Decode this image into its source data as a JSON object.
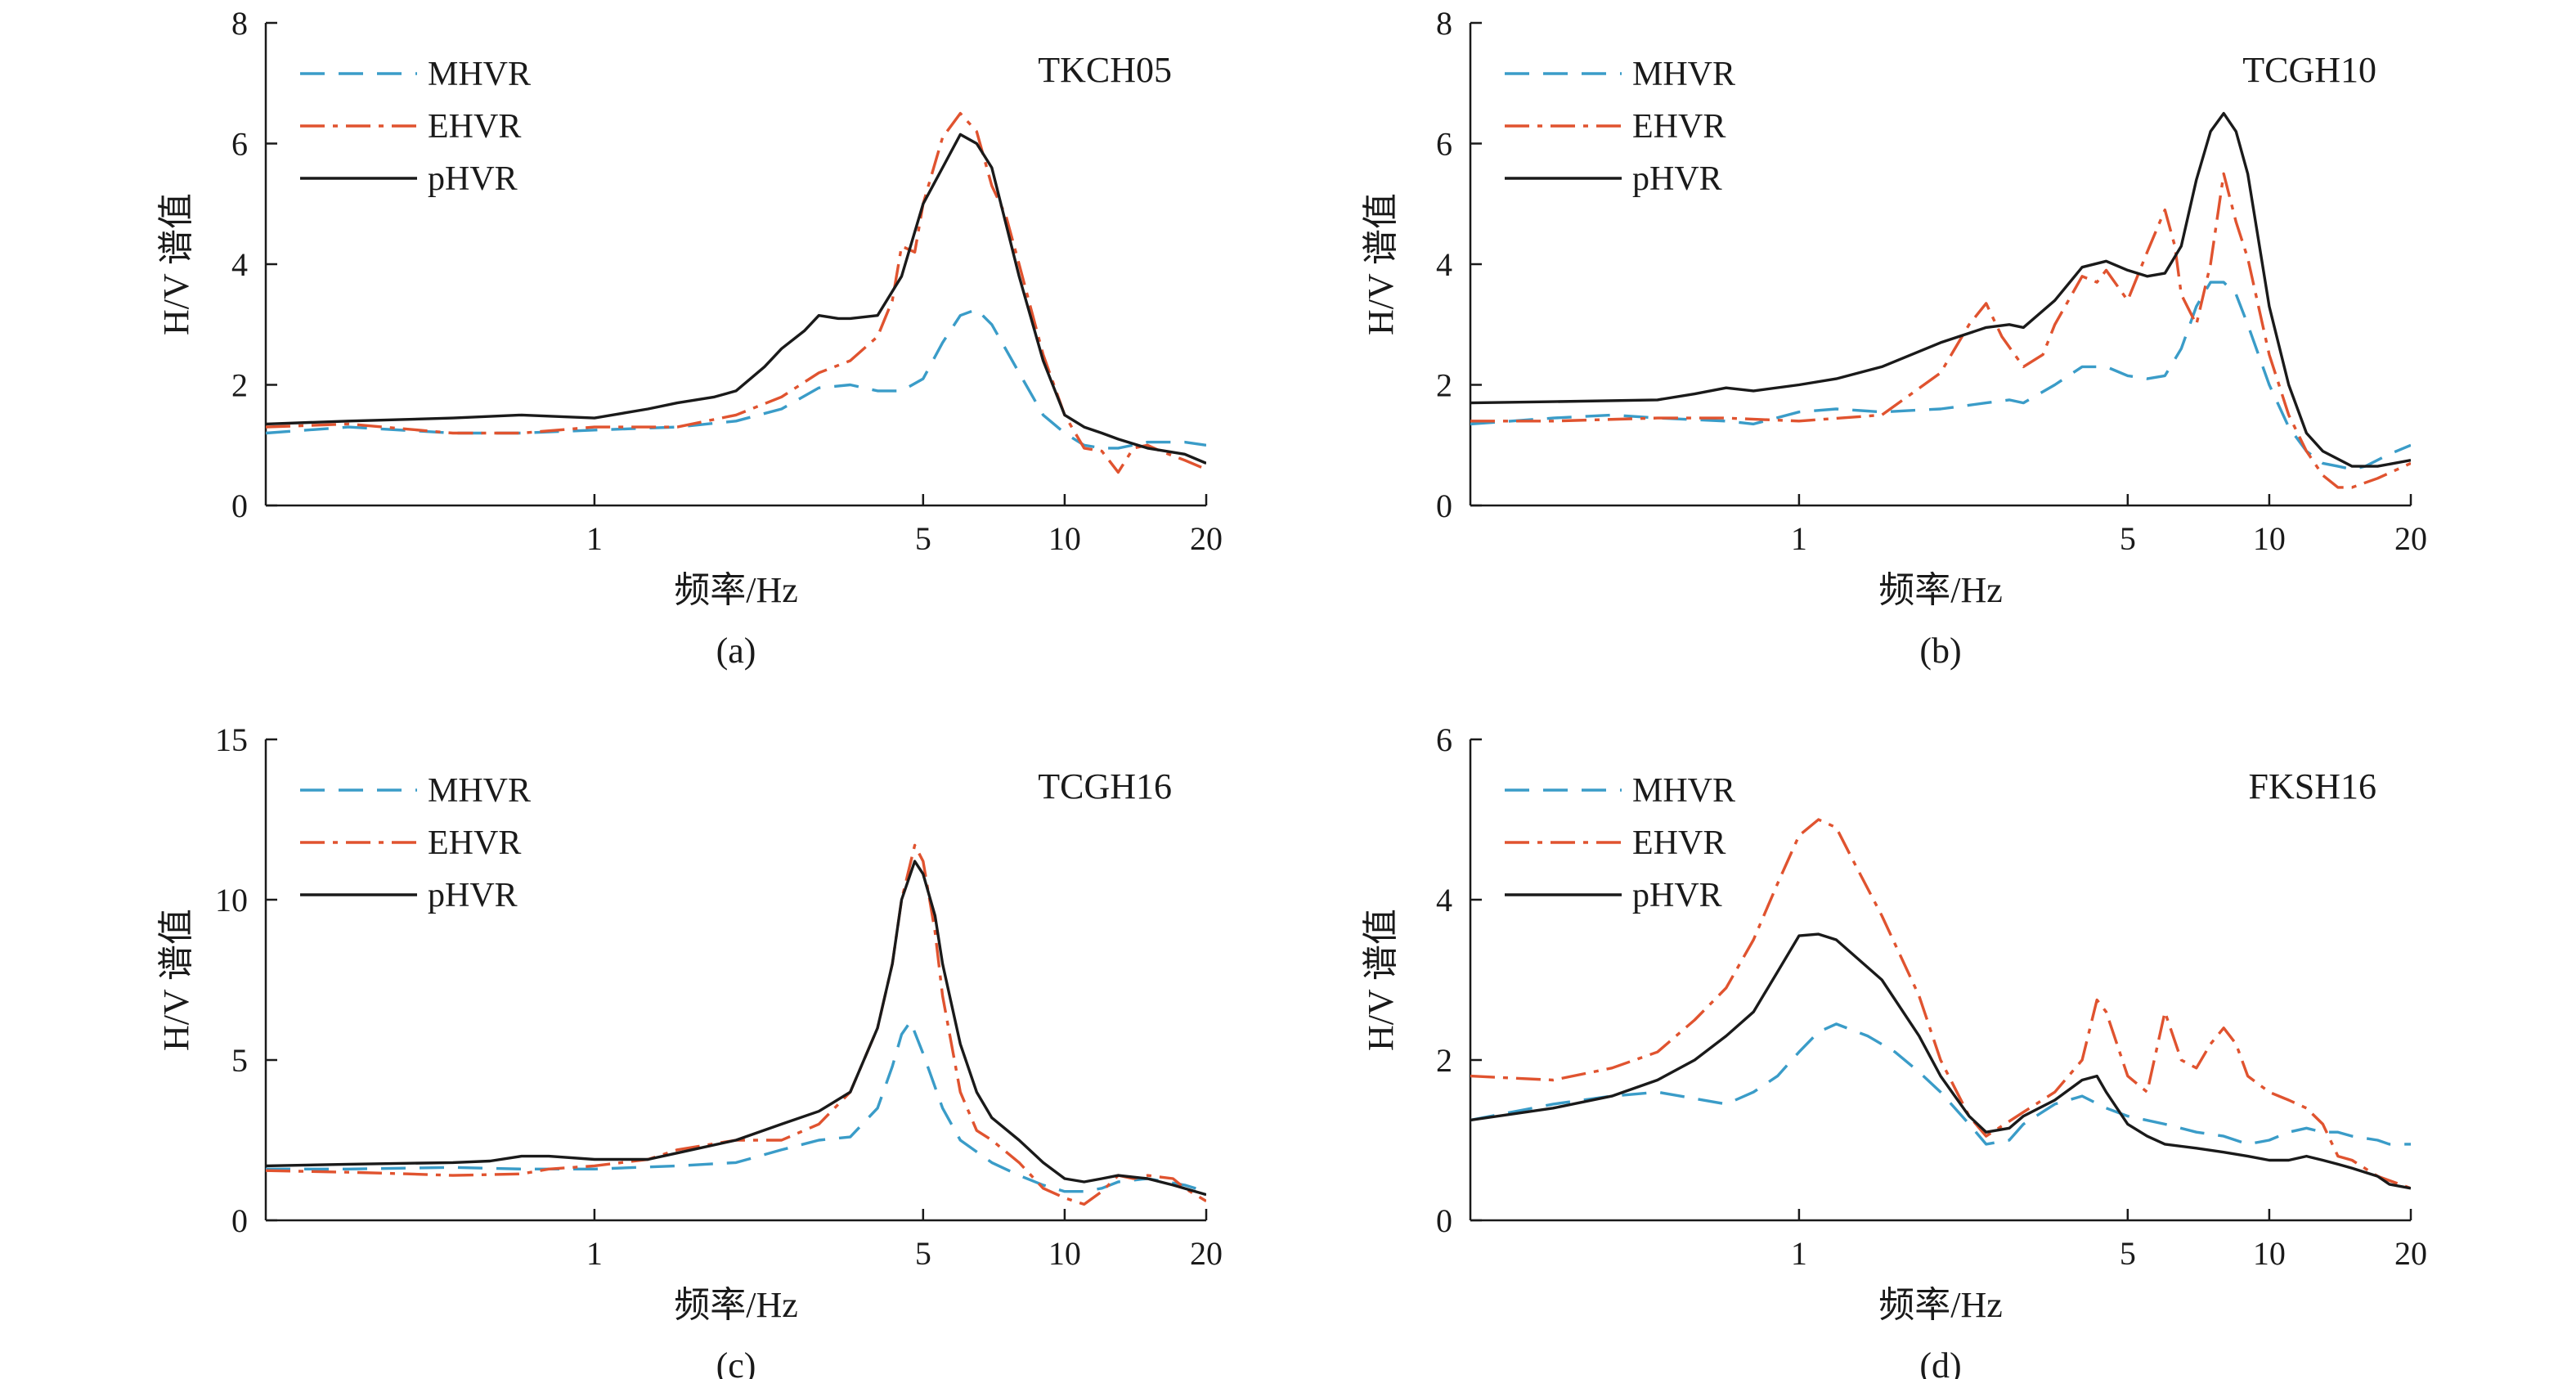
{
  "colors": {
    "MHVR": "#3a9cc8",
    "EHVR": "#e0532f",
    "pHVR": "#1a1a1a"
  },
  "chart_data": [
    {
      "panel_label": "(a)",
      "type": "line",
      "station": "TKCH05",
      "xlabel": "频率/Hz",
      "ylabel": "H/V 谱值",
      "xscale": "log",
      "xlim": [
        0.2,
        20
      ],
      "ylim": [
        0,
        8
      ],
      "xticks": [
        {
          "v": 1,
          "label": "1"
        },
        {
          "v": 5,
          "label": "5"
        },
        {
          "v": 10,
          "label": "10"
        },
        {
          "v": 20,
          "label": "20"
        }
      ],
      "yticks": [
        0,
        2,
        4,
        6,
        8
      ],
      "legend": [
        "MHVR",
        "EHVR",
        "pHVR"
      ],
      "legend_position": "top-left",
      "series": [
        {
          "name": "MHVR",
          "dash": "long",
          "x": [
            0.2,
            0.3,
            0.5,
            0.7,
            1.0,
            1.5,
            2.0,
            2.5,
            3.0,
            3.5,
            4.0,
            4.5,
            5.0,
            5.5,
            6.0,
            6.5,
            7.0,
            8.0,
            9.0,
            10,
            11,
            12,
            13,
            15,
            18,
            20
          ],
          "y": [
            1.2,
            1.3,
            1.2,
            1.2,
            1.25,
            1.3,
            1.4,
            1.6,
            1.95,
            2.0,
            1.9,
            1.9,
            2.1,
            2.7,
            3.15,
            3.25,
            3.0,
            2.2,
            1.5,
            1.2,
            1.0,
            0.95,
            0.95,
            1.05,
            1.05,
            1.0
          ]
        },
        {
          "name": "EHVR",
          "dash": "dashdot",
          "x": [
            0.2,
            0.3,
            0.5,
            0.7,
            1.0,
            1.5,
            2.0,
            2.5,
            3.0,
            3.5,
            4.0,
            4.3,
            4.5,
            4.8,
            5.0,
            5.5,
            6.0,
            6.5,
            7.0,
            7.5,
            8.0,
            9.0,
            10,
            11,
            12,
            13,
            14,
            15,
            16,
            18,
            20
          ],
          "y": [
            1.3,
            1.35,
            1.2,
            1.2,
            1.3,
            1.3,
            1.5,
            1.8,
            2.2,
            2.4,
            2.8,
            3.4,
            4.3,
            4.2,
            5.0,
            6.1,
            6.5,
            6.2,
            5.3,
            4.8,
            4.0,
            2.5,
            1.5,
            0.95,
            0.9,
            0.55,
            0.95,
            1.0,
            0.9,
            0.75,
            0.6
          ]
        },
        {
          "name": "pHVR",
          "dash": "solid",
          "x": [
            0.2,
            0.3,
            0.5,
            0.7,
            1.0,
            1.3,
            1.5,
            1.8,
            2.0,
            2.3,
            2.5,
            2.8,
            3.0,
            3.3,
            3.5,
            4.0,
            4.5,
            5.0,
            5.5,
            6.0,
            6.5,
            7.0,
            8.0,
            9.0,
            10,
            11,
            12,
            13,
            15,
            18,
            20
          ],
          "y": [
            1.35,
            1.4,
            1.45,
            1.5,
            1.45,
            1.6,
            1.7,
            1.8,
            1.9,
            2.3,
            2.6,
            2.9,
            3.15,
            3.1,
            3.1,
            3.15,
            3.8,
            5.0,
            5.6,
            6.15,
            6.0,
            5.6,
            3.8,
            2.4,
            1.5,
            1.3,
            1.2,
            1.1,
            0.95,
            0.85,
            0.7
          ]
        }
      ]
    },
    {
      "panel_label": "(b)",
      "type": "line",
      "station": "TCGH10",
      "xlabel": "频率/Hz",
      "ylabel": "H/V 谱值",
      "xscale": "log",
      "xlim": [
        0.2,
        20
      ],
      "ylim": [
        0,
        8
      ],
      "xticks": [
        {
          "v": 1,
          "label": "1"
        },
        {
          "v": 5,
          "label": "5"
        },
        {
          "v": 10,
          "label": "10"
        },
        {
          "v": 20,
          "label": "20"
        }
      ],
      "yticks": [
        0,
        2,
        4,
        6,
        8
      ],
      "legend": [
        "MHVR",
        "EHVR",
        "pHVR"
      ],
      "legend_position": "top-left",
      "series": [
        {
          "name": "MHVR",
          "dash": "long",
          "x": [
            0.2,
            0.3,
            0.4,
            0.5,
            0.7,
            0.8,
            1.0,
            1.2,
            1.5,
            2.0,
            2.5,
            2.8,
            3.0,
            3.5,
            4.0,
            4.5,
            5.0,
            5.5,
            6.0,
            6.5,
            7.0,
            7.5,
            8.0,
            8.5,
            9.0,
            10,
            11,
            12,
            13,
            14,
            15,
            16,
            18,
            20
          ],
          "y": [
            1.35,
            1.45,
            1.5,
            1.45,
            1.4,
            1.35,
            1.55,
            1.6,
            1.55,
            1.6,
            1.7,
            1.75,
            1.7,
            2.0,
            2.3,
            2.3,
            2.15,
            2.1,
            2.15,
            2.6,
            3.3,
            3.7,
            3.7,
            3.5,
            3.0,
            2.0,
            1.3,
            0.9,
            0.7,
            0.65,
            0.6,
            0.65,
            0.85,
            1.0
          ]
        },
        {
          "name": "EHVR",
          "dash": "dashdot",
          "x": [
            0.2,
            0.3,
            0.5,
            0.7,
            1.0,
            1.5,
            2.0,
            2.3,
            2.5,
            2.7,
            3.0,
            3.3,
            3.5,
            4.0,
            4.3,
            4.5,
            5.0,
            5.5,
            6.0,
            6.3,
            6.5,
            7.0,
            7.5,
            8.0,
            8.5,
            9.0,
            10,
            11,
            12,
            13,
            14,
            15,
            17,
            20
          ],
          "y": [
            1.4,
            1.4,
            1.45,
            1.45,
            1.4,
            1.5,
            2.2,
            3.0,
            3.35,
            2.8,
            2.3,
            2.5,
            3.0,
            3.8,
            3.7,
            3.9,
            3.4,
            4.2,
            4.9,
            4.3,
            3.5,
            3.0,
            4.0,
            5.5,
            4.7,
            4.1,
            2.5,
            1.5,
            0.9,
            0.5,
            0.3,
            0.3,
            0.45,
            0.7
          ]
        },
        {
          "name": "pHVR",
          "dash": "solid",
          "x": [
            0.2,
            0.3,
            0.5,
            0.6,
            0.7,
            0.8,
            1.0,
            1.2,
            1.5,
            2.0,
            2.5,
            2.8,
            3.0,
            3.5,
            4.0,
            4.5,
            5.0,
            5.5,
            6.0,
            6.5,
            7.0,
            7.5,
            8.0,
            8.5,
            9.0,
            10,
            11,
            12,
            13,
            15,
            17,
            20
          ],
          "y": [
            1.7,
            1.72,
            1.75,
            1.85,
            1.95,
            1.9,
            2.0,
            2.1,
            2.3,
            2.7,
            2.95,
            3.0,
            2.95,
            3.4,
            3.95,
            4.05,
            3.9,
            3.8,
            3.85,
            4.3,
            5.4,
            6.2,
            6.5,
            6.2,
            5.5,
            3.3,
            2.0,
            1.2,
            0.9,
            0.65,
            0.65,
            0.75
          ]
        }
      ]
    },
    {
      "panel_label": "(c)",
      "type": "line",
      "station": "TCGH16",
      "xlabel": "频率/Hz",
      "ylabel": "H/V 谱值",
      "xscale": "log",
      "xlim": [
        0.2,
        20
      ],
      "ylim": [
        0,
        15
      ],
      "xticks": [
        {
          "v": 1,
          "label": "1"
        },
        {
          "v": 5,
          "label": "5"
        },
        {
          "v": 10,
          "label": "10"
        },
        {
          "v": 20,
          "label": "20"
        }
      ],
      "yticks": [
        0,
        5,
        10,
        15
      ],
      "legend": [
        "MHVR",
        "EHVR",
        "pHVR"
      ],
      "legend_position": "top-left",
      "series": [
        {
          "name": "MHVR",
          "dash": "long",
          "x": [
            0.2,
            0.3,
            0.5,
            0.7,
            1.0,
            1.5,
            2.0,
            2.5,
            3.0,
            3.5,
            4.0,
            4.3,
            4.5,
            4.7,
            5.0,
            5.5,
            6.0,
            7.0,
            8.0,
            9.0,
            10,
            11,
            12,
            13,
            15,
            18,
            20
          ],
          "y": [
            1.6,
            1.6,
            1.65,
            1.6,
            1.6,
            1.7,
            1.8,
            2.2,
            2.5,
            2.6,
            3.5,
            4.8,
            5.8,
            6.2,
            5.2,
            3.5,
            2.5,
            1.8,
            1.4,
            1.1,
            0.9,
            0.9,
            1.0,
            1.2,
            1.3,
            1.1,
            0.9
          ]
        },
        {
          "name": "EHVR",
          "dash": "dashdot",
          "x": [
            0.2,
            0.3,
            0.4,
            0.5,
            0.7,
            0.8,
            1.0,
            1.3,
            1.5,
            2.0,
            2.5,
            3.0,
            3.5,
            4.0,
            4.3,
            4.5,
            4.8,
            5.0,
            5.3,
            5.5,
            6.0,
            6.5,
            7.0,
            8.0,
            9.0,
            10,
            11,
            12,
            13,
            14,
            15,
            17,
            18,
            20
          ],
          "y": [
            1.55,
            1.5,
            1.45,
            1.4,
            1.45,
            1.6,
            1.7,
            1.9,
            2.2,
            2.5,
            2.5,
            3.0,
            4.0,
            6.0,
            8.0,
            10.0,
            11.7,
            11.2,
            9.0,
            7.0,
            4.0,
            2.8,
            2.5,
            1.8,
            1.0,
            0.7,
            0.5,
            0.9,
            1.4,
            1.3,
            1.4,
            1.3,
            1.0,
            0.6
          ]
        },
        {
          "name": "pHVR",
          "dash": "solid",
          "x": [
            0.2,
            0.3,
            0.5,
            0.6,
            0.7,
            0.8,
            1.0,
            1.3,
            1.5,
            2.0,
            2.5,
            3.0,
            3.5,
            4.0,
            4.3,
            4.5,
            4.8,
            5.0,
            5.3,
            5.5,
            6.0,
            6.5,
            7.0,
            8.0,
            9.0,
            10,
            11,
            12,
            13,
            15,
            17,
            20
          ],
          "y": [
            1.7,
            1.75,
            1.8,
            1.85,
            2.0,
            2.0,
            1.9,
            1.9,
            2.1,
            2.5,
            3.0,
            3.4,
            4.0,
            6.0,
            8.0,
            10.0,
            11.2,
            10.8,
            9.5,
            8.0,
            5.5,
            4.0,
            3.2,
            2.5,
            1.8,
            1.3,
            1.2,
            1.3,
            1.4,
            1.3,
            1.1,
            0.8
          ]
        }
      ]
    },
    {
      "panel_label": "(d)",
      "type": "line",
      "station": "FKSH16",
      "xlabel": "频率/Hz",
      "ylabel": "H/V 谱值",
      "xscale": "log",
      "xlim": [
        0.2,
        20
      ],
      "ylim": [
        0,
        6
      ],
      "xticks": [
        {
          "v": 1,
          "label": "1"
        },
        {
          "v": 5,
          "label": "5"
        },
        {
          "v": 10,
          "label": "10"
        },
        {
          "v": 20,
          "label": "20"
        }
      ],
      "yticks": [
        0,
        2,
        4,
        6
      ],
      "legend": [
        "MHVR",
        "EHVR",
        "pHVR"
      ],
      "legend_position": "top-left",
      "series": [
        {
          "name": "MHVR",
          "dash": "long",
          "x": [
            0.2,
            0.3,
            0.4,
            0.5,
            0.7,
            0.8,
            0.9,
            1.0,
            1.1,
            1.2,
            1.4,
            1.6,
            1.8,
            2.0,
            2.3,
            2.5,
            2.8,
            3.0,
            3.5,
            4.0,
            4.5,
            5.0,
            6.0,
            7.0,
            8.0,
            9.0,
            10,
            11,
            12,
            13,
            14,
            15,
            17,
            18,
            20
          ],
          "y": [
            1.25,
            1.45,
            1.55,
            1.6,
            1.45,
            1.6,
            1.8,
            2.1,
            2.35,
            2.45,
            2.3,
            2.1,
            1.85,
            1.6,
            1.2,
            0.95,
            1.0,
            1.2,
            1.45,
            1.55,
            1.4,
            1.3,
            1.2,
            1.1,
            1.05,
            0.95,
            1.0,
            1.1,
            1.15,
            1.1,
            1.1,
            1.05,
            1.0,
            0.95,
            0.95
          ]
        },
        {
          "name": "EHVR",
          "dash": "dashdot",
          "x": [
            0.2,
            0.3,
            0.4,
            0.5,
            0.6,
            0.7,
            0.8,
            0.9,
            1.0,
            1.1,
            1.2,
            1.3,
            1.5,
            1.8,
            2.0,
            2.3,
            2.5,
            3.0,
            3.5,
            4.0,
            4.3,
            4.5,
            5.0,
            5.5,
            6.0,
            6.5,
            7.0,
            7.5,
            8.0,
            8.5,
            9.0,
            10,
            11,
            12,
            13,
            14,
            15,
            17,
            20
          ],
          "y": [
            1.8,
            1.75,
            1.9,
            2.1,
            2.5,
            2.9,
            3.5,
            4.2,
            4.8,
            5.0,
            4.9,
            4.5,
            3.8,
            2.8,
            2.0,
            1.3,
            1.05,
            1.35,
            1.6,
            2.0,
            2.75,
            2.6,
            1.8,
            1.6,
            2.6,
            2.0,
            1.9,
            2.2,
            2.4,
            2.2,
            1.8,
            1.6,
            1.5,
            1.4,
            1.2,
            0.8,
            0.75,
            0.55,
            0.4
          ]
        },
        {
          "name": "pHVR",
          "dash": "solid",
          "x": [
            0.2,
            0.3,
            0.4,
            0.5,
            0.6,
            0.7,
            0.8,
            0.9,
            1.0,
            1.1,
            1.2,
            1.5,
            1.8,
            2.0,
            2.3,
            2.5,
            2.8,
            3.0,
            3.5,
            4.0,
            4.3,
            4.5,
            5.0,
            5.5,
            6.0,
            7.0,
            8.0,
            9.0,
            10,
            11,
            12,
            13,
            14,
            15,
            17,
            18,
            20
          ],
          "y": [
            1.25,
            1.4,
            1.55,
            1.75,
            2.0,
            2.3,
            2.6,
            3.1,
            3.55,
            3.57,
            3.5,
            3.0,
            2.3,
            1.8,
            1.3,
            1.1,
            1.15,
            1.3,
            1.5,
            1.75,
            1.8,
            1.6,
            1.2,
            1.05,
            0.95,
            0.9,
            0.85,
            0.8,
            0.75,
            0.75,
            0.8,
            0.75,
            0.7,
            0.65,
            0.55,
            0.45,
            0.4
          ]
        }
      ]
    }
  ]
}
